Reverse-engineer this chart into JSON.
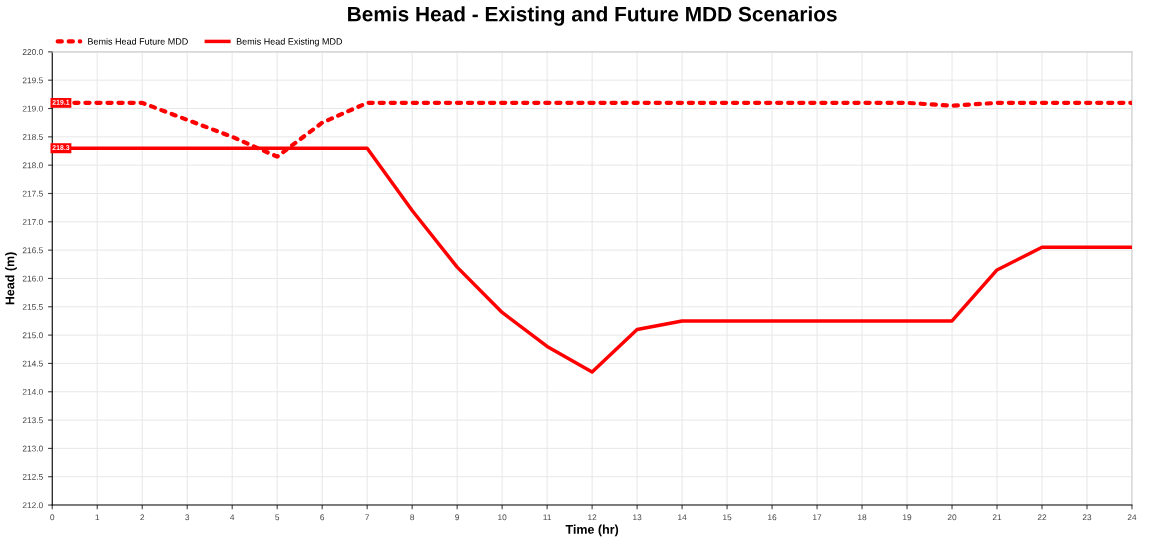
{
  "chart_data": {
    "type": "line",
    "title": "Bemis Head - Existing and Future MDD Scenarios",
    "xlabel": "Time (hr)",
    "ylabel": "Head (m)",
    "x": [
      0,
      1,
      2,
      3,
      4,
      5,
      6,
      7,
      8,
      9,
      10,
      11,
      12,
      13,
      14,
      15,
      16,
      17,
      18,
      19,
      20,
      21,
      22,
      23,
      24
    ],
    "series": [
      {
        "name": "Bemis Head Future MDD",
        "color": "#ff0000",
        "line_style": "dotted",
        "values": [
          219.1,
          219.1,
          219.1,
          218.8,
          218.5,
          218.15,
          218.75,
          219.1,
          219.1,
          219.1,
          219.1,
          219.1,
          219.1,
          219.1,
          219.1,
          219.1,
          219.1,
          219.1,
          219.1,
          219.1,
          219.05,
          219.1,
          219.1,
          219.1,
          219.1
        ],
        "value_labels": [
          "219.1",
          null,
          null,
          null,
          null,
          null,
          null,
          null,
          null,
          null,
          null,
          null,
          null,
          null,
          null,
          null,
          null,
          null,
          null,
          null,
          null,
          null,
          null,
          null,
          null
        ]
      },
      {
        "name": "Bemis Head Existing MDD",
        "color": "#ff0000",
        "line_style": "solid",
        "values": [
          218.3,
          218.3,
          218.3,
          218.3,
          218.3,
          218.3,
          218.3,
          218.3,
          217.2,
          216.2,
          215.4,
          214.8,
          214.35,
          215.1,
          215.25,
          215.25,
          215.25,
          215.25,
          215.25,
          215.25,
          215.25,
          216.15,
          216.55,
          216.55,
          216.55
        ],
        "value_labels": [
          "218.3",
          null,
          null,
          null,
          null,
          null,
          null,
          null,
          null,
          null,
          null,
          null,
          null,
          null,
          null,
          null,
          null,
          null,
          null,
          null,
          null,
          null,
          null,
          null,
          null
        ]
      }
    ],
    "xlim": [
      0,
      24
    ],
    "xticks": [
      0,
      1,
      2,
      3,
      4,
      5,
      6,
      7,
      8,
      9,
      10,
      11,
      12,
      13,
      14,
      15,
      16,
      17,
      18,
      19,
      20,
      21,
      22,
      23,
      24
    ],
    "ylim": [
      212,
      220
    ],
    "yticks": [
      "212.0",
      "212.5",
      "213.0",
      "213.5",
      "214.0",
      "214.5",
      "215.0",
      "215.5",
      "216.0",
      "216.5",
      "217.0",
      "217.5",
      "218.0",
      "218.5",
      "219.0",
      "219.5",
      "220.0"
    ],
    "grid": true,
    "legend": "top left",
    "marker": "none"
  }
}
